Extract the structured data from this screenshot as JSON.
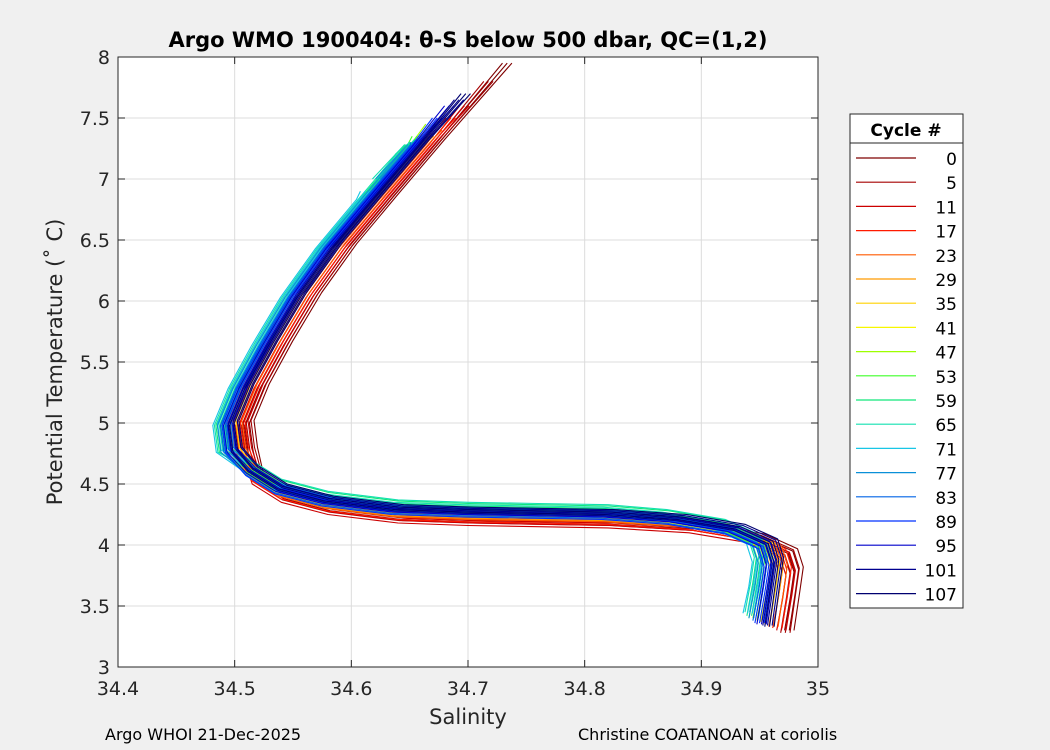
{
  "chart_data": {
    "type": "line",
    "title": "Argo WMO 1900404: θ-S below 500 dbar,  QC=(1,2)",
    "xlabel": "Salinity",
    "ylabel": "Potential Temperature (˚ C)",
    "xlim": [
      34.4,
      35.0
    ],
    "ylim": [
      3.0,
      8.0
    ],
    "xticks": [
      34.4,
      34.5,
      34.6,
      34.7,
      34.8,
      34.9,
      35.0
    ],
    "xtick_labels": [
      "34.4",
      "34.5",
      "34.6",
      "34.7",
      "34.8",
      "34.9",
      "35"
    ],
    "yticks": [
      3.0,
      3.5,
      4.0,
      4.5,
      5.0,
      5.5,
      6.0,
      6.5,
      7.0,
      7.5,
      8.0
    ],
    "ytick_labels": [
      "3",
      "3.5",
      "4",
      "4.5",
      "5",
      "5.5",
      "6",
      "6.5",
      "7",
      "7.5",
      "8"
    ],
    "grid": true,
    "legend_title": "Cycle #",
    "legend_position": "outside-right",
    "series": [
      {
        "name": "0",
        "color": "#7f0000",
        "offset_s": 0.012,
        "offset_t": -0.05,
        "top_t": 7.95,
        "bottom_t": 3.3
      },
      {
        "name": "5",
        "color": "#a50000",
        "offset_s": 0.01,
        "offset_t": -0.06,
        "top_t": 7.8,
        "bottom_t": 3.28
      },
      {
        "name": "11",
        "color": "#cc0000",
        "offset_s": 0.008,
        "offset_t": -0.08,
        "top_t": 7.6,
        "bottom_t": 3.3
      },
      {
        "name": "17",
        "color": "#ff1a00",
        "offset_s": 0.006,
        "offset_t": -0.05,
        "top_t": 7.5,
        "bottom_t": 3.32
      },
      {
        "name": "23",
        "color": "#ff5a00",
        "offset_s": 0.004,
        "offset_t": -0.03,
        "top_t": 7.4,
        "bottom_t": 3.33
      },
      {
        "name": "29",
        "color": "#ff9a00",
        "offset_s": 0.002,
        "offset_t": -0.02,
        "top_t": 7.35,
        "bottom_t": 3.35
      },
      {
        "name": "35",
        "color": "#ffd200",
        "offset_s": 0.0,
        "offset_t": -0.01,
        "top_t": 7.3,
        "bottom_t": 3.37
      },
      {
        "name": "41",
        "color": "#f7f700",
        "offset_s": -0.002,
        "offset_t": 0.0,
        "top_t": 7.35,
        "bottom_t": 3.38
      },
      {
        "name": "47",
        "color": "#9eff00",
        "offset_s": -0.004,
        "offset_t": 0.02,
        "top_t": 7.45,
        "bottom_t": 3.4
      },
      {
        "name": "53",
        "color": "#3fff28",
        "offset_s": -0.006,
        "offset_t": 0.03,
        "top_t": 7.35,
        "bottom_t": 3.4
      },
      {
        "name": "59",
        "color": "#10e87a",
        "offset_s": -0.007,
        "offset_t": 0.06,
        "top_t": 7.2,
        "bottom_t": 3.42
      },
      {
        "name": "65",
        "color": "#13e0b0",
        "offset_s": -0.008,
        "offset_t": 0.07,
        "top_t": 7.0,
        "bottom_t": 3.45
      },
      {
        "name": "71",
        "color": "#18c6e6",
        "offset_s": -0.009,
        "offset_t": 0.03,
        "top_t": 6.9,
        "bottom_t": 3.44
      },
      {
        "name": "77",
        "color": "#0a90d8",
        "offset_s": -0.006,
        "offset_t": 0.02,
        "top_t": 7.0,
        "bottom_t": 3.4
      },
      {
        "name": "83",
        "color": "#0064e6",
        "offset_s": -0.004,
        "offset_t": 0.0,
        "top_t": 7.3,
        "bottom_t": 3.38
      },
      {
        "name": "89",
        "color": "#0032ff",
        "offset_s": -0.003,
        "offset_t": -0.01,
        "top_t": 7.5,
        "bottom_t": 3.36
      },
      {
        "name": "95",
        "color": "#0000cc",
        "offset_s": -0.002,
        "offset_t": 0.01,
        "top_t": 7.6,
        "bottom_t": 3.35
      },
      {
        "name": "101",
        "color": "#00008f",
        "offset_s": 0.001,
        "offset_t": 0.02,
        "top_t": 7.65,
        "bottom_t": 3.34
      },
      {
        "name": "107",
        "color": "#000070",
        "offset_s": 0.002,
        "offset_t": 0.03,
        "top_t": 7.7,
        "bottom_t": 3.33
      }
    ],
    "base_curve": [
      [
        34.7,
        7.75
      ],
      [
        34.66,
        7.3
      ],
      [
        34.62,
        6.85
      ],
      [
        34.585,
        6.45
      ],
      [
        34.555,
        6.05
      ],
      [
        34.53,
        5.65
      ],
      [
        34.51,
        5.3
      ],
      [
        34.497,
        5.0
      ],
      [
        34.5,
        4.78
      ],
      [
        34.515,
        4.6
      ],
      [
        34.54,
        4.45
      ],
      [
        34.58,
        4.35
      ],
      [
        34.64,
        4.28
      ],
      [
        34.7,
        4.26
      ],
      [
        34.76,
        4.25
      ],
      [
        34.82,
        4.24
      ],
      [
        34.88,
        4.2
      ],
      [
        34.93,
        4.12
      ],
      [
        34.958,
        4.0
      ],
      [
        34.963,
        3.85
      ],
      [
        34.96,
        3.65
      ],
      [
        34.955,
        3.45
      ]
    ]
  },
  "footer": {
    "left": "Argo WHOI 21-Dec-2025",
    "right": "Christine COATANOAN at coriolis"
  }
}
